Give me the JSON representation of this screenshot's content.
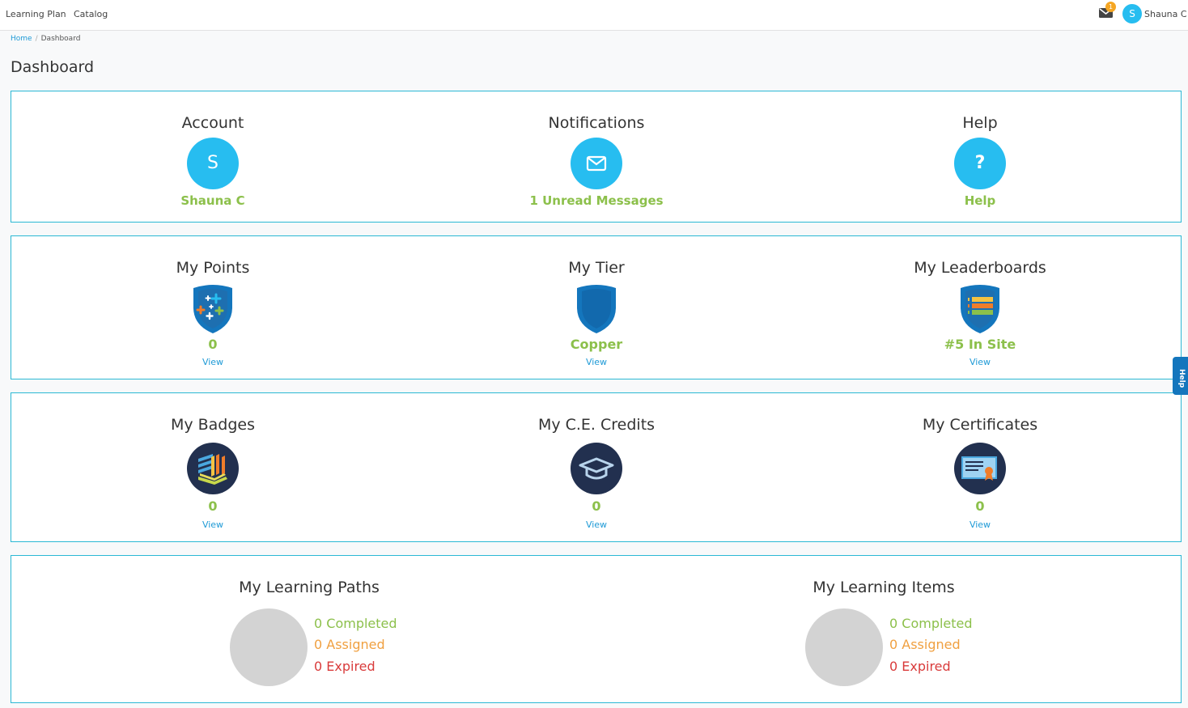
{
  "nav": {
    "links": [
      "Learning Plan",
      "Catalog"
    ],
    "notification_count": "1",
    "user_initial": "S",
    "user_name": "Shauna C"
  },
  "breadcrumb": {
    "home": "Home",
    "separator": "/",
    "current": "Dashboard"
  },
  "page_title": "Dashboard",
  "row1": {
    "account": {
      "title": "Account",
      "initial": "S",
      "value": "Shauna C"
    },
    "notifications": {
      "title": "Notifications",
      "value": "1 Unread Messages"
    },
    "help": {
      "title": "Help",
      "glyph": "?",
      "value": "Help"
    }
  },
  "row2": {
    "points": {
      "title": "My Points",
      "value": "0",
      "link": "View"
    },
    "tier": {
      "title": "My Tier",
      "value": "Copper",
      "link": "View"
    },
    "leaderboards": {
      "title": "My Leaderboards",
      "value": "#5 In Site",
      "link": "View"
    }
  },
  "row3": {
    "badges": {
      "title": "My Badges",
      "value": "0",
      "link": "View"
    },
    "credits": {
      "title": "My C.E. Credits",
      "value": "0",
      "link": "View"
    },
    "certificates": {
      "title": "My Certificates",
      "value": "0",
      "link": "View"
    }
  },
  "row4": {
    "paths": {
      "title": "My Learning Paths",
      "completed": "0 Completed",
      "assigned": "0 Assigned",
      "expired": "0 Expired"
    },
    "items": {
      "title": "My Learning Items",
      "completed": "0 Completed",
      "assigned": "0 Assigned",
      "expired": "0 Expired"
    }
  },
  "help_tab": "Help",
  "colors": {
    "accent": "#27bdf0",
    "green": "#8cc04b",
    "orange": "#f0a040",
    "red": "#d93b3b",
    "link": "#1e9ad6",
    "card_border": "#2bb8d4",
    "shield": "#1476bd"
  },
  "icons": [
    "envelope-icon",
    "question-icon",
    "points-shield-icon",
    "tier-shield-icon",
    "leaderboard-shield-icon",
    "badges-icon",
    "graduation-cap-icon",
    "certificate-icon"
  ]
}
